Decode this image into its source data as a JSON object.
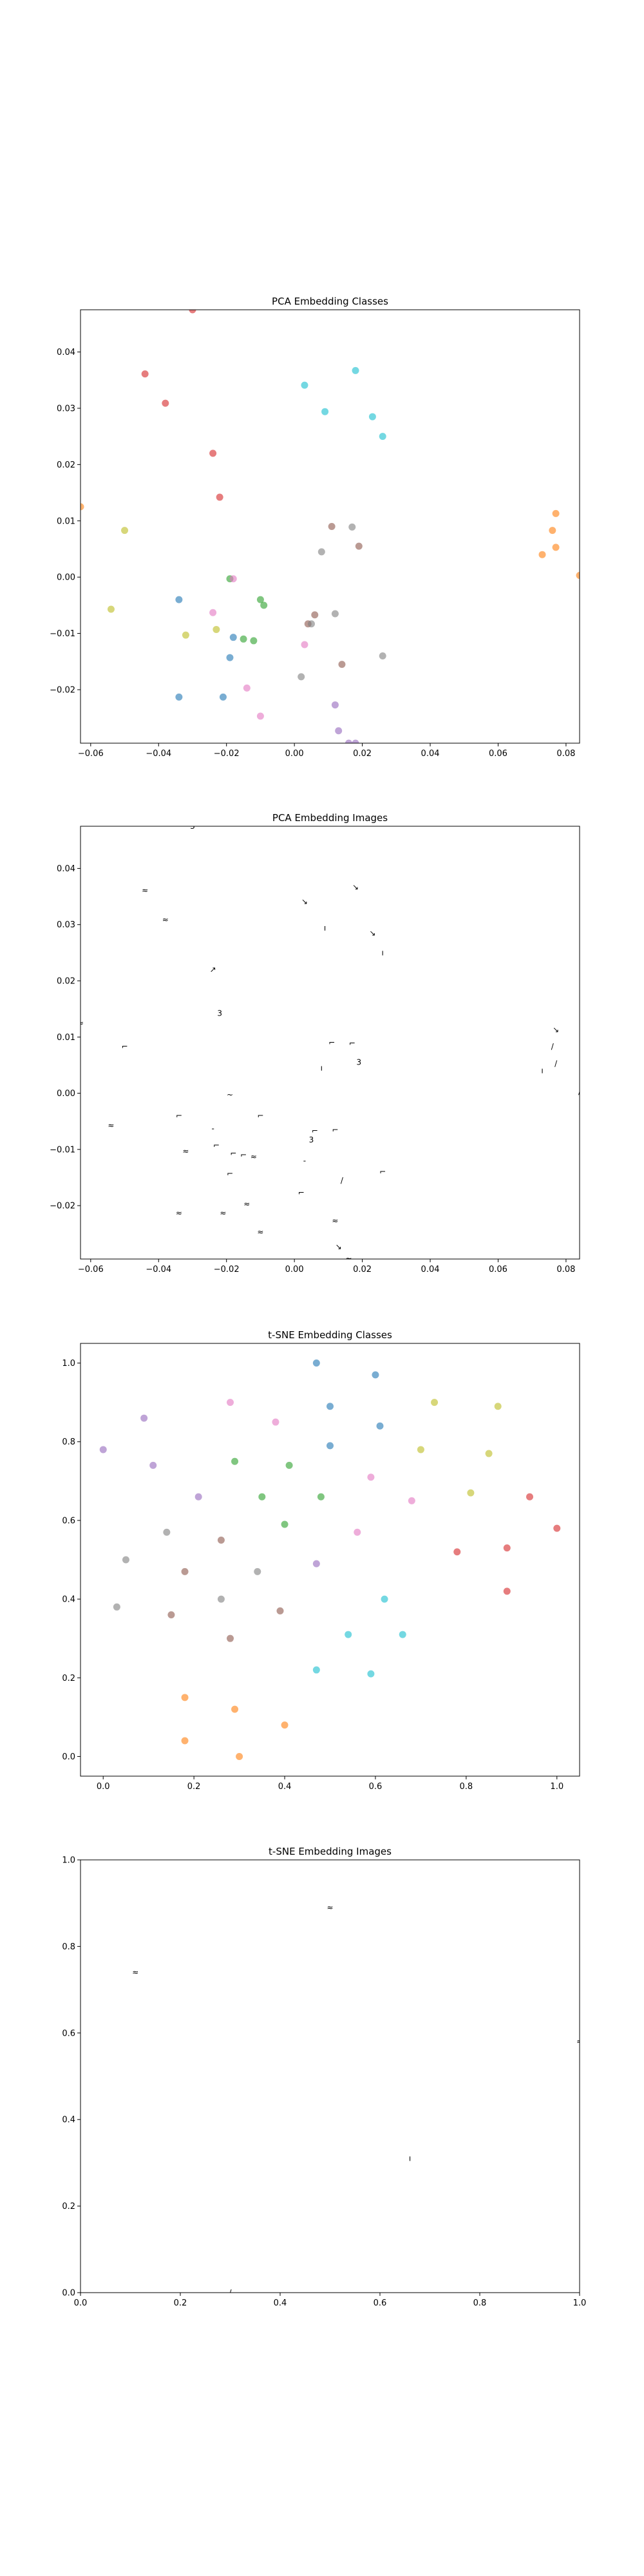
{
  "chart_data": [
    {
      "type": "scatter",
      "title": "PCA Embedding Classes",
      "xlim": [
        -0.063,
        0.084
      ],
      "ylim": [
        -0.0295,
        0.0475
      ],
      "xticks": [
        -0.06,
        -0.04,
        -0.02,
        0.0,
        0.02,
        0.04,
        0.06,
        0.08
      ],
      "xtick_labels": [
        "−0.06",
        "−0.04",
        "−0.02",
        "0.00",
        "0.02",
        "0.04",
        "0.06",
        "0.08"
      ],
      "yticks": [
        -0.02,
        -0.01,
        0.0,
        0.01,
        0.02,
        0.03,
        0.04
      ],
      "ytick_labels": [
        "−0.02",
        "−0.01",
        "0.00",
        "0.01",
        "0.02",
        "0.03",
        "0.04"
      ],
      "grid": false,
      "points": [
        {
          "x": -0.03,
          "y": 0.0475,
          "color": "#d62728"
        },
        {
          "x": -0.044,
          "y": 0.0361,
          "color": "#d62728"
        },
        {
          "x": -0.038,
          "y": 0.0309,
          "color": "#d62728"
        },
        {
          "x": -0.024,
          "y": 0.022,
          "color": "#d62728"
        },
        {
          "x": -0.022,
          "y": 0.0142,
          "color": "#d62728"
        },
        {
          "x": -0.063,
          "y": 0.0125,
          "color": "#ff7f0e"
        },
        {
          "x": -0.05,
          "y": 0.0083,
          "color": "#bcbd22"
        },
        {
          "x": -0.054,
          "y": -0.0057,
          "color": "#bcbd22"
        },
        {
          "x": -0.034,
          "y": -0.004,
          "color": "#1f77b4"
        },
        {
          "x": -0.032,
          "y": -0.0103,
          "color": "#bcbd22"
        },
        {
          "x": -0.034,
          "y": -0.0213,
          "color": "#1f77b4"
        },
        {
          "x": -0.024,
          "y": -0.0063,
          "color": "#e377c2"
        },
        {
          "x": -0.023,
          "y": -0.0093,
          "color": "#bcbd22"
        },
        {
          "x": -0.019,
          "y": -0.0003,
          "color": "#2ca02c"
        },
        {
          "x": -0.018,
          "y": -0.0003,
          "color": "#e377c2"
        },
        {
          "x": -0.018,
          "y": -0.0107,
          "color": "#1f77b4"
        },
        {
          "x": -0.015,
          "y": -0.011,
          "color": "#2ca02c"
        },
        {
          "x": -0.012,
          "y": -0.0113,
          "color": "#2ca02c"
        },
        {
          "x": -0.01,
          "y": -0.004,
          "color": "#2ca02c"
        },
        {
          "x": -0.009,
          "y": -0.005,
          "color": "#2ca02c"
        },
        {
          "x": -0.019,
          "y": -0.0143,
          "color": "#1f77b4"
        },
        {
          "x": -0.021,
          "y": -0.0213,
          "color": "#1f77b4"
        },
        {
          "x": -0.014,
          "y": -0.0197,
          "color": "#e377c2"
        },
        {
          "x": -0.01,
          "y": -0.0247,
          "color": "#e377c2"
        },
        {
          "x": 0.002,
          "y": -0.0177,
          "color": "#7f7f7f"
        },
        {
          "x": 0.003,
          "y": -0.012,
          "color": "#e377c2"
        },
        {
          "x": 0.004,
          "y": -0.0083,
          "color": "#8c564b"
        },
        {
          "x": 0.005,
          "y": -0.0083,
          "color": "#7f7f7f"
        },
        {
          "x": 0.006,
          "y": -0.0067,
          "color": "#8c564b"
        },
        {
          "x": 0.003,
          "y": 0.0341,
          "color": "#17becf"
        },
        {
          "x": 0.009,
          "y": 0.0294,
          "color": "#17becf"
        },
        {
          "x": 0.018,
          "y": 0.0367,
          "color": "#17becf"
        },
        {
          "x": 0.023,
          "y": 0.0285,
          "color": "#17becf"
        },
        {
          "x": 0.026,
          "y": 0.025,
          "color": "#17becf"
        },
        {
          "x": 0.008,
          "y": 0.0045,
          "color": "#7f7f7f"
        },
        {
          "x": 0.011,
          "y": 0.009,
          "color": "#8c564b"
        },
        {
          "x": 0.017,
          "y": 0.0089,
          "color": "#7f7f7f"
        },
        {
          "x": 0.019,
          "y": 0.0055,
          "color": "#8c564b"
        },
        {
          "x": 0.012,
          "y": -0.0065,
          "color": "#7f7f7f"
        },
        {
          "x": 0.014,
          "y": -0.0155,
          "color": "#8c564b"
        },
        {
          "x": 0.026,
          "y": -0.014,
          "color": "#7f7f7f"
        },
        {
          "x": 0.012,
          "y": -0.0227,
          "color": "#9467bd"
        },
        {
          "x": 0.013,
          "y": -0.0273,
          "color": "#9467bd"
        },
        {
          "x": 0.016,
          "y": -0.0295,
          "color": "#9467bd"
        },
        {
          "x": 0.018,
          "y": -0.0295,
          "color": "#9467bd"
        },
        {
          "x": 0.077,
          "y": 0.0113,
          "color": "#ff7f0e"
        },
        {
          "x": 0.076,
          "y": 0.0083,
          "color": "#ff7f0e"
        },
        {
          "x": 0.077,
          "y": 0.0053,
          "color": "#ff7f0e"
        },
        {
          "x": 0.073,
          "y": 0.004,
          "color": "#ff7f0e"
        },
        {
          "x": 0.084,
          "y": 0.0003,
          "color": "#ff7f0e"
        }
      ]
    },
    {
      "type": "scatter",
      "title": "PCA Embedding Images",
      "xlim": [
        -0.063,
        0.084
      ],
      "ylim": [
        -0.0295,
        0.0475
      ],
      "xticks": [
        -0.06,
        -0.04,
        -0.02,
        0.0,
        0.02,
        0.04,
        0.06,
        0.08
      ],
      "xtick_labels": [
        "−0.06",
        "−0.04",
        "−0.02",
        "0.00",
        "0.02",
        "0.04",
        "0.06",
        "0.08"
      ],
      "yticks": [
        -0.02,
        -0.01,
        0.0,
        0.01,
        0.02,
        0.03,
        0.04
      ],
      "ytick_labels": [
        "−0.02",
        "−0.01",
        "0.00",
        "0.01",
        "0.02",
        "0.03",
        "0.04"
      ],
      "grid": false,
      "markers": "small digit images",
      "points": [
        {
          "x": -0.03,
          "y": 0.0475,
          "glyph": "3"
        },
        {
          "x": -0.044,
          "y": 0.0361,
          "glyph": "≈"
        },
        {
          "x": -0.038,
          "y": 0.0309,
          "glyph": "≈"
        },
        {
          "x": -0.024,
          "y": 0.022,
          "glyph": "↗"
        },
        {
          "x": -0.022,
          "y": 0.0142,
          "glyph": "3"
        },
        {
          "x": -0.063,
          "y": 0.0125,
          "glyph": "≈"
        },
        {
          "x": -0.05,
          "y": 0.0083,
          "glyph": "⌐"
        },
        {
          "x": -0.054,
          "y": -0.0057,
          "glyph": "≈"
        },
        {
          "x": -0.034,
          "y": -0.004,
          "glyph": "⌐"
        },
        {
          "x": -0.032,
          "y": -0.0103,
          "glyph": "≈"
        },
        {
          "x": -0.034,
          "y": -0.0213,
          "glyph": "≈"
        },
        {
          "x": -0.024,
          "y": -0.0063,
          "glyph": "-"
        },
        {
          "x": -0.023,
          "y": -0.0093,
          "glyph": "⌐"
        },
        {
          "x": -0.019,
          "y": -0.0003,
          "glyph": "~"
        },
        {
          "x": -0.018,
          "y": -0.0107,
          "glyph": "⌐"
        },
        {
          "x": -0.015,
          "y": -0.011,
          "glyph": "⌐"
        },
        {
          "x": -0.012,
          "y": -0.0113,
          "glyph": "≈"
        },
        {
          "x": -0.01,
          "y": -0.004,
          "glyph": "⌐"
        },
        {
          "x": -0.019,
          "y": -0.0143,
          "glyph": "⌐"
        },
        {
          "x": -0.021,
          "y": -0.0213,
          "glyph": "≈"
        },
        {
          "x": -0.014,
          "y": -0.0197,
          "glyph": "≈"
        },
        {
          "x": -0.01,
          "y": -0.0247,
          "glyph": "≈"
        },
        {
          "x": 0.002,
          "y": -0.0177,
          "glyph": "⌐"
        },
        {
          "x": 0.003,
          "y": -0.012,
          "glyph": "-"
        },
        {
          "x": 0.005,
          "y": -0.0083,
          "glyph": "3"
        },
        {
          "x": 0.006,
          "y": -0.0067,
          "glyph": "⌐"
        },
        {
          "x": 0.003,
          "y": 0.0341,
          "glyph": "↘"
        },
        {
          "x": 0.009,
          "y": 0.0294,
          "glyph": "ı"
        },
        {
          "x": 0.018,
          "y": 0.0367,
          "glyph": "↘"
        },
        {
          "x": 0.023,
          "y": 0.0285,
          "glyph": "↘"
        },
        {
          "x": 0.026,
          "y": 0.025,
          "glyph": "ı"
        },
        {
          "x": 0.008,
          "y": 0.0045,
          "glyph": "ı"
        },
        {
          "x": 0.011,
          "y": 0.009,
          "glyph": "⌐"
        },
        {
          "x": 0.017,
          "y": 0.0089,
          "glyph": "⌐"
        },
        {
          "x": 0.019,
          "y": 0.0055,
          "glyph": "3"
        },
        {
          "x": 0.012,
          "y": -0.0065,
          "glyph": "⌐"
        },
        {
          "x": 0.014,
          "y": -0.0155,
          "glyph": "/"
        },
        {
          "x": 0.026,
          "y": -0.014,
          "glyph": "⌐"
        },
        {
          "x": 0.012,
          "y": -0.0227,
          "glyph": "≈"
        },
        {
          "x": 0.013,
          "y": -0.0273,
          "glyph": "↘"
        },
        {
          "x": 0.016,
          "y": -0.0295,
          "glyph": "≈"
        },
        {
          "x": 0.077,
          "y": 0.0113,
          "glyph": "↘"
        },
        {
          "x": 0.076,
          "y": 0.0083,
          "glyph": "/"
        },
        {
          "x": 0.077,
          "y": 0.0053,
          "glyph": "/"
        },
        {
          "x": 0.073,
          "y": 0.004,
          "glyph": "ı"
        },
        {
          "x": 0.084,
          "y": 0.0003,
          "glyph": "/"
        }
      ]
    },
    {
      "type": "scatter",
      "title": "t-SNE Embedding Classes",
      "xlim": [
        -0.05,
        1.05
      ],
      "ylim": [
        -0.05,
        1.05
      ],
      "xticks": [
        0.0,
        0.2,
        0.4,
        0.6,
        0.8,
        1.0
      ],
      "xtick_labels": [
        "0.0",
        "0.2",
        "0.4",
        "0.6",
        "0.8",
        "1.0"
      ],
      "yticks": [
        0.0,
        0.2,
        0.4,
        0.6,
        0.8,
        1.0
      ],
      "ytick_labels": [
        "0.0",
        "0.2",
        "0.4",
        "0.6",
        "0.8",
        "1.0"
      ],
      "grid": false,
      "points": [
        {
          "x": 0.0,
          "y": 0.78,
          "color": "#9467bd"
        },
        {
          "x": 0.09,
          "y": 0.86,
          "color": "#9467bd"
        },
        {
          "x": 0.11,
          "y": 0.74,
          "color": "#9467bd"
        },
        {
          "x": 0.21,
          "y": 0.66,
          "color": "#9467bd"
        },
        {
          "x": 0.47,
          "y": 1.0,
          "color": "#1f77b4"
        },
        {
          "x": 0.5,
          "y": 0.89,
          "color": "#1f77b4"
        },
        {
          "x": 0.5,
          "y": 0.79,
          "color": "#1f77b4"
        },
        {
          "x": 0.6,
          "y": 0.97,
          "color": "#1f77b4"
        },
        {
          "x": 0.61,
          "y": 0.84,
          "color": "#1f77b4"
        },
        {
          "x": 0.28,
          "y": 0.9,
          "color": "#e377c2"
        },
        {
          "x": 0.38,
          "y": 0.85,
          "color": "#e377c2"
        },
        {
          "x": 0.59,
          "y": 0.71,
          "color": "#e377c2"
        },
        {
          "x": 0.68,
          "y": 0.65,
          "color": "#e377c2"
        },
        {
          "x": 0.56,
          "y": 0.57,
          "color": "#e377c2"
        },
        {
          "x": 0.29,
          "y": 0.75,
          "color": "#2ca02c"
        },
        {
          "x": 0.41,
          "y": 0.74,
          "color": "#2ca02c"
        },
        {
          "x": 0.35,
          "y": 0.66,
          "color": "#2ca02c"
        },
        {
          "x": 0.48,
          "y": 0.66,
          "color": "#2ca02c"
        },
        {
          "x": 0.4,
          "y": 0.59,
          "color": "#2ca02c"
        },
        {
          "x": 0.73,
          "y": 0.9,
          "color": "#bcbd22"
        },
        {
          "x": 0.87,
          "y": 0.89,
          "color": "#bcbd22"
        },
        {
          "x": 0.7,
          "y": 0.78,
          "color": "#bcbd22"
        },
        {
          "x": 0.85,
          "y": 0.77,
          "color": "#bcbd22"
        },
        {
          "x": 0.81,
          "y": 0.67,
          "color": "#bcbd22"
        },
        {
          "x": 0.94,
          "y": 0.66,
          "color": "#d62728"
        },
        {
          "x": 1.0,
          "y": 0.58,
          "color": "#d62728"
        },
        {
          "x": 0.78,
          "y": 0.52,
          "color": "#d62728"
        },
        {
          "x": 0.89,
          "y": 0.53,
          "color": "#d62728"
        },
        {
          "x": 0.89,
          "y": 0.42,
          "color": "#d62728"
        },
        {
          "x": 0.05,
          "y": 0.5,
          "color": "#7f7f7f"
        },
        {
          "x": 0.14,
          "y": 0.57,
          "color": "#7f7f7f"
        },
        {
          "x": 0.03,
          "y": 0.38,
          "color": "#7f7f7f"
        },
        {
          "x": 0.26,
          "y": 0.4,
          "color": "#7f7f7f"
        },
        {
          "x": 0.34,
          "y": 0.47,
          "color": "#7f7f7f"
        },
        {
          "x": 0.18,
          "y": 0.47,
          "color": "#8c564b"
        },
        {
          "x": 0.26,
          "y": 0.55,
          "color": "#8c564b"
        },
        {
          "x": 0.15,
          "y": 0.36,
          "color": "#8c564b"
        },
        {
          "x": 0.28,
          "y": 0.3,
          "color": "#8c564b"
        },
        {
          "x": 0.39,
          "y": 0.37,
          "color": "#8c564b"
        },
        {
          "x": 0.47,
          "y": 0.49,
          "color": "#9467bd"
        },
        {
          "x": 0.62,
          "y": 0.4,
          "color": "#17becf"
        },
        {
          "x": 0.54,
          "y": 0.31,
          "color": "#17becf"
        },
        {
          "x": 0.66,
          "y": 0.31,
          "color": "#17becf"
        },
        {
          "x": 0.47,
          "y": 0.22,
          "color": "#17becf"
        },
        {
          "x": 0.59,
          "y": 0.21,
          "color": "#17becf"
        },
        {
          "x": 0.18,
          "y": 0.15,
          "color": "#ff7f0e"
        },
        {
          "x": 0.29,
          "y": 0.12,
          "color": "#ff7f0e"
        },
        {
          "x": 0.18,
          "y": 0.04,
          "color": "#ff7f0e"
        },
        {
          "x": 0.4,
          "y": 0.08,
          "color": "#ff7f0e"
        },
        {
          "x": 0.3,
          "y": 0.0,
          "color": "#ff7f0e"
        }
      ]
    },
    {
      "type": "scatter",
      "title": "t-SNE Embedding Images",
      "xlim": [
        0.0,
        1.0
      ],
      "ylim": [
        0.0,
        1.0
      ],
      "xticks": [
        0.0,
        0.2,
        0.4,
        0.6,
        0.8,
        1.0
      ],
      "xtick_labels": [
        "0.0",
        "0.2",
        "0.4",
        "0.6",
        "0.8",
        "1.0"
      ],
      "yticks": [
        0.0,
        0.2,
        0.4,
        0.6,
        0.8,
        1.0
      ],
      "ytick_labels": [
        "0.0",
        "0.2",
        "0.4",
        "0.6",
        "0.8",
        "1.0"
      ],
      "grid": false,
      "markers": "small digit images",
      "points": [
        {
          "x": 0.11,
          "y": 0.74,
          "glyph": "≈"
        },
        {
          "x": 0.5,
          "y": 0.89,
          "glyph": "≈"
        },
        {
          "x": 1.0,
          "y": 0.58,
          "glyph": "≈"
        },
        {
          "x": 0.66,
          "y": 0.31,
          "glyph": "ı"
        },
        {
          "x": 0.3,
          "y": 0.0,
          "glyph": "/"
        }
      ]
    }
  ]
}
